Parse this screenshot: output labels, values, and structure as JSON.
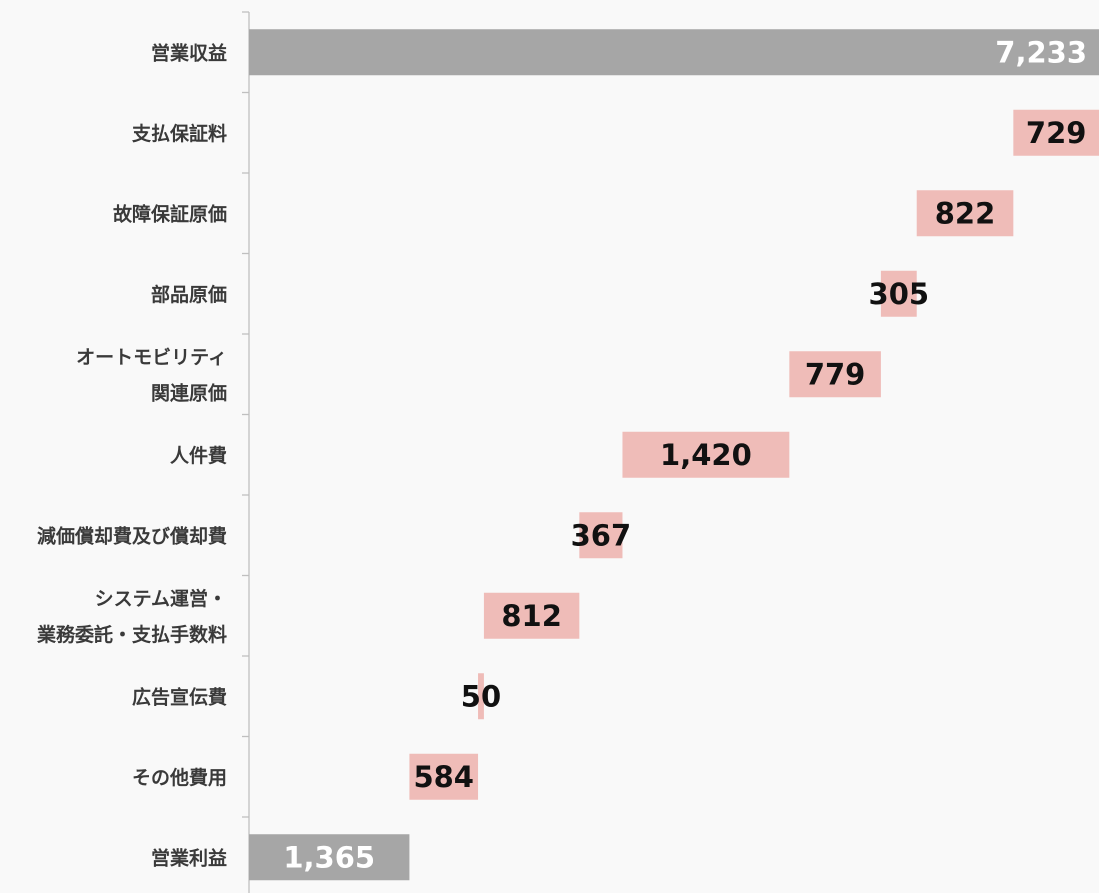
{
  "chart_data": {
    "type": "bar",
    "subtype": "waterfall",
    "orientation": "horizontal",
    "title": "",
    "xlabel": "",
    "ylabel": "",
    "xlim": [
      0,
      7233
    ],
    "grid": false,
    "legend": "none",
    "colors": {
      "total": "#a6a6a6",
      "decrease": "#efbcb8",
      "label_on_total": "#ffffff",
      "label_on_decrease": "#111111",
      "axis": "#bfbfbf",
      "background": "#f9f9f9"
    },
    "categories": [
      [
        "営業収益"
      ],
      [
        "支払保証料"
      ],
      [
        "故障保証原価"
      ],
      [
        "部品原価"
      ],
      [
        "オートモビリティ",
        "関連原価"
      ],
      [
        "人件費"
      ],
      [
        "減価償却費及び償却費"
      ],
      [
        "システム運営・",
        "業務委託・支払手数料"
      ],
      [
        "広告宣伝費"
      ],
      [
        "その他費用"
      ],
      [
        "営業利益"
      ]
    ],
    "values": [
      7233,
      729,
      822,
      305,
      779,
      1420,
      367,
      812,
      50,
      584,
      1365
    ],
    "value_labels": [
      "7,233",
      "729",
      "822",
      "305",
      "779",
      "1,420",
      "367",
      "812",
      "50",
      "584",
      "1,365"
    ],
    "bar_kind": [
      "total",
      "decrease",
      "decrease",
      "decrease",
      "decrease",
      "decrease",
      "decrease",
      "decrease",
      "decrease",
      "decrease",
      "total"
    ]
  }
}
